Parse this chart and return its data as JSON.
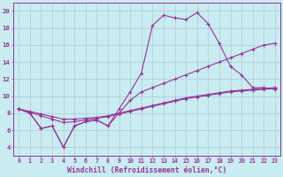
{
  "bg_color": "#c8ecf0",
  "grid_color": "#b0c8d8",
  "line_color": "#993399",
  "xlim": [
    -0.5,
    23.5
  ],
  "ylim": [
    3.0,
    21.0
  ],
  "xticks": [
    0,
    1,
    2,
    3,
    4,
    5,
    6,
    7,
    8,
    9,
    10,
    11,
    12,
    13,
    14,
    15,
    16,
    17,
    18,
    19,
    20,
    21,
    22,
    23
  ],
  "yticks": [
    4,
    6,
    8,
    10,
    12,
    14,
    16,
    18,
    20
  ],
  "xlabel": "Windchill (Refroidissement éolien,°C)",
  "line1_x": [
    0,
    1,
    2,
    3,
    4,
    5,
    6,
    7,
    8,
    9,
    10,
    11,
    12,
    13,
    14,
    15,
    16,
    17,
    18,
    19,
    20,
    21,
    22,
    23
  ],
  "line1_y": [
    8.5,
    8.0,
    6.2,
    6.5,
    4.0,
    6.5,
    7.0,
    7.2,
    6.5,
    8.5,
    10.5,
    12.7,
    18.3,
    19.5,
    19.2,
    19.0,
    19.8,
    18.5,
    16.2,
    13.5,
    12.5,
    11.0,
    11.0,
    10.8
  ],
  "line2_x": [
    0,
    1,
    2,
    3,
    4,
    5,
    6,
    7,
    8,
    9,
    10,
    11,
    12,
    13,
    14,
    15,
    16,
    17,
    18,
    19,
    20,
    21,
    22,
    23
  ],
  "line2_y": [
    8.5,
    8.0,
    6.2,
    6.5,
    4.0,
    6.5,
    7.0,
    7.2,
    6.5,
    8.0,
    9.5,
    10.5,
    11.0,
    11.5,
    12.0,
    12.5,
    13.0,
    13.5,
    14.0,
    14.5,
    15.0,
    15.5,
    16.0,
    16.2
  ],
  "line3_x": [
    0,
    1,
    2,
    3,
    4,
    5,
    6,
    7,
    8,
    9,
    10,
    11,
    12,
    13,
    14,
    15,
    16,
    17,
    18,
    19,
    20,
    21,
    22,
    23
  ],
  "line3_y": [
    8.5,
    8.1,
    7.7,
    7.3,
    6.9,
    7.0,
    7.2,
    7.4,
    7.6,
    7.9,
    8.2,
    8.5,
    8.8,
    9.1,
    9.4,
    9.7,
    9.9,
    10.1,
    10.3,
    10.5,
    10.6,
    10.7,
    10.8,
    10.9
  ],
  "line4_x": [
    0,
    1,
    2,
    3,
    4,
    5,
    6,
    7,
    8,
    9,
    10,
    11,
    12,
    13,
    14,
    15,
    16,
    17,
    18,
    19,
    20,
    21,
    22,
    23
  ],
  "line4_y": [
    8.5,
    8.2,
    7.9,
    7.6,
    7.3,
    7.3,
    7.4,
    7.5,
    7.7,
    8.0,
    8.3,
    8.6,
    8.9,
    9.2,
    9.5,
    9.8,
    10.0,
    10.2,
    10.4,
    10.6,
    10.7,
    10.8,
    10.9,
    11.0
  ]
}
